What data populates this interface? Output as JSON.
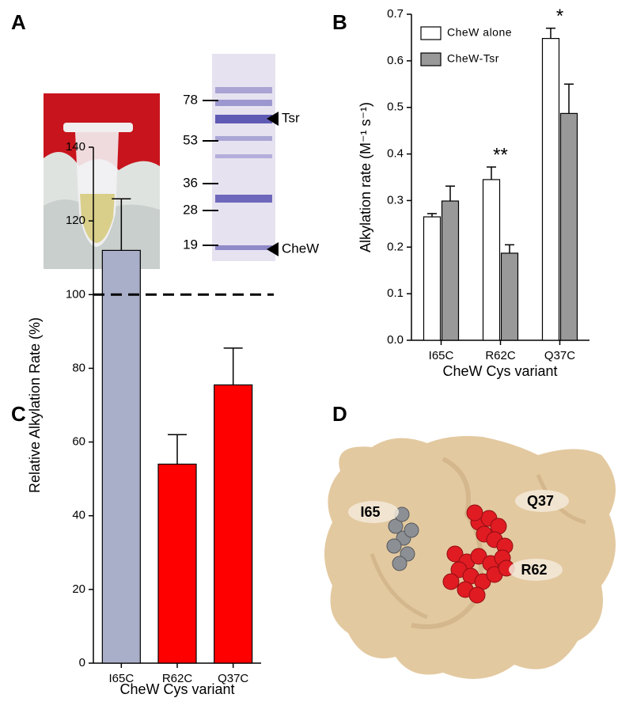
{
  "panel_labels": [
    "A",
    "B",
    "C",
    "D"
  ],
  "gel": {
    "markers": [
      78,
      53,
      36,
      28,
      19
    ],
    "bands": [
      "Tsr",
      "CheW"
    ]
  },
  "structure": {
    "labels": [
      "I65",
      "Q37",
      "R62"
    ]
  },
  "chart_data": [
    {
      "type": "bar",
      "categories": [
        "I65C",
        "R62C",
        "Q37C"
      ],
      "xlabel": "CheW Cys variant",
      "ylabel": "Alkylation rate (M⁻¹ s⁻¹)",
      "series": [
        {
          "name": "CheW alone",
          "color": "#ffffff",
          "values": [
            0.265,
            0.345,
            0.648
          ],
          "errors": [
            0.007,
            0.027,
            0.022
          ]
        },
        {
          "name": "CheW-Tsr",
          "color": "#999999",
          "values": [
            0.299,
            0.187,
            0.487
          ],
          "errors": [
            0.032,
            0.018,
            0.063
          ]
        }
      ],
      "significance": [
        null,
        "**",
        "*"
      ],
      "ylim": [
        0,
        0.7
      ],
      "yticks": [
        {
          "value": 0,
          "label": "0.0"
        },
        0.1,
        0.2,
        0.3,
        0.4,
        0.5,
        0.6,
        0.7
      ],
      "legend": "upper-left"
    },
    {
      "type": "bar",
      "categories": [
        "I65C",
        "R62C",
        "Q37C"
      ],
      "xlabel": "CheW Cys variant",
      "ylabel": "Relative Alkylation Rate (%)",
      "values": [
        112,
        54,
        75.5
      ],
      "errors": [
        14,
        8,
        10
      ],
      "colors": [
        "#a9aec9",
        "#ff0000",
        "#ff0000"
      ],
      "reference_line": 100,
      "ylim": [
        0,
        140
      ],
      "yticks": [
        0,
        20,
        40,
        60,
        80,
        100,
        120,
        140
      ]
    }
  ]
}
